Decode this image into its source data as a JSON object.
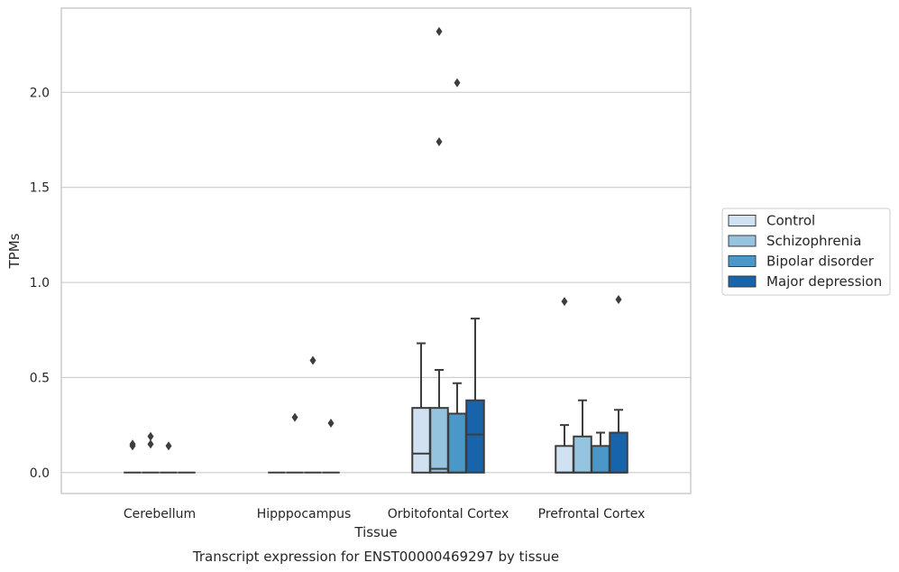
{
  "chart_data": {
    "type": "box",
    "title": "",
    "caption": "Transcript expression for ENST00000469297 by tissue",
    "xlabel": "Tissue",
    "ylabel": "TPMs",
    "ylim": [
      -0.11,
      2.45
    ],
    "yticks": [
      0.0,
      0.5,
      1.0,
      1.5,
      2.0
    ],
    "ytick_labels": [
      "0.0",
      "0.5",
      "1.0",
      "1.5",
      "2.0"
    ],
    "grid": "horizontal",
    "legend_position": "right",
    "categories": [
      "Cerebellum",
      "Hipppocampus",
      "Orbitofontal Cortex",
      "Prefrontal Cortex"
    ],
    "series": [
      {
        "name": "Control",
        "color": "#d0e1f2",
        "boxes": [
          {
            "whislo": 0,
            "q1": 0,
            "med": 0,
            "q3": 0,
            "whishi": 0,
            "fliers": [
              0.14,
              0.15
            ]
          },
          {
            "whislo": 0,
            "q1": 0,
            "med": 0,
            "q3": 0,
            "whishi": 0,
            "fliers": []
          },
          {
            "whislo": 0,
            "q1": 0,
            "med": 0.1,
            "q3": 0.34,
            "whishi": 0.68,
            "fliers": []
          },
          {
            "whislo": 0,
            "q1": 0,
            "med": 0,
            "q3": 0.14,
            "whishi": 0.25,
            "fliers": [
              0.9
            ]
          }
        ]
      },
      {
        "name": "Schizophrenia",
        "color": "#94c4df",
        "boxes": [
          {
            "whislo": 0,
            "q1": 0,
            "med": 0,
            "q3": 0,
            "whishi": 0,
            "fliers": [
              0.15,
              0.19
            ]
          },
          {
            "whislo": 0,
            "q1": 0,
            "med": 0,
            "q3": 0,
            "whishi": 0,
            "fliers": [
              0.29
            ]
          },
          {
            "whislo": 0,
            "q1": 0,
            "med": 0.02,
            "q3": 0.34,
            "whishi": 0.54,
            "fliers": [
              1.74,
              2.32
            ]
          },
          {
            "whislo": 0,
            "q1": 0,
            "med": 0,
            "q3": 0.19,
            "whishi": 0.38,
            "fliers": []
          }
        ]
      },
      {
        "name": "Bipolar disorder",
        "color": "#4a98c9",
        "boxes": [
          {
            "whislo": 0,
            "q1": 0,
            "med": 0,
            "q3": 0,
            "whishi": 0,
            "fliers": [
              0.14
            ]
          },
          {
            "whislo": 0,
            "q1": 0,
            "med": 0,
            "q3": 0,
            "whishi": 0,
            "fliers": [
              0.59
            ]
          },
          {
            "whislo": 0,
            "q1": 0,
            "med": 0,
            "q3": 0.31,
            "whishi": 0.47,
            "fliers": [
              2.05
            ]
          },
          {
            "whislo": 0,
            "q1": 0,
            "med": 0,
            "q3": 0.14,
            "whishi": 0.21,
            "fliers": []
          }
        ]
      },
      {
        "name": "Major depression",
        "color": "#1764ab",
        "boxes": [
          {
            "whislo": 0,
            "q1": 0,
            "med": 0,
            "q3": 0,
            "whishi": 0,
            "fliers": []
          },
          {
            "whislo": 0,
            "q1": 0,
            "med": 0,
            "q3": 0,
            "whishi": 0,
            "fliers": [
              0.26
            ]
          },
          {
            "whislo": 0,
            "q1": 0,
            "med": 0.2,
            "q3": 0.38,
            "whishi": 0.81,
            "fliers": []
          },
          {
            "whislo": 0,
            "q1": 0,
            "med": 0,
            "q3": 0.21,
            "whishi": 0.33,
            "fliers": [
              0.91
            ]
          }
        ]
      }
    ]
  }
}
